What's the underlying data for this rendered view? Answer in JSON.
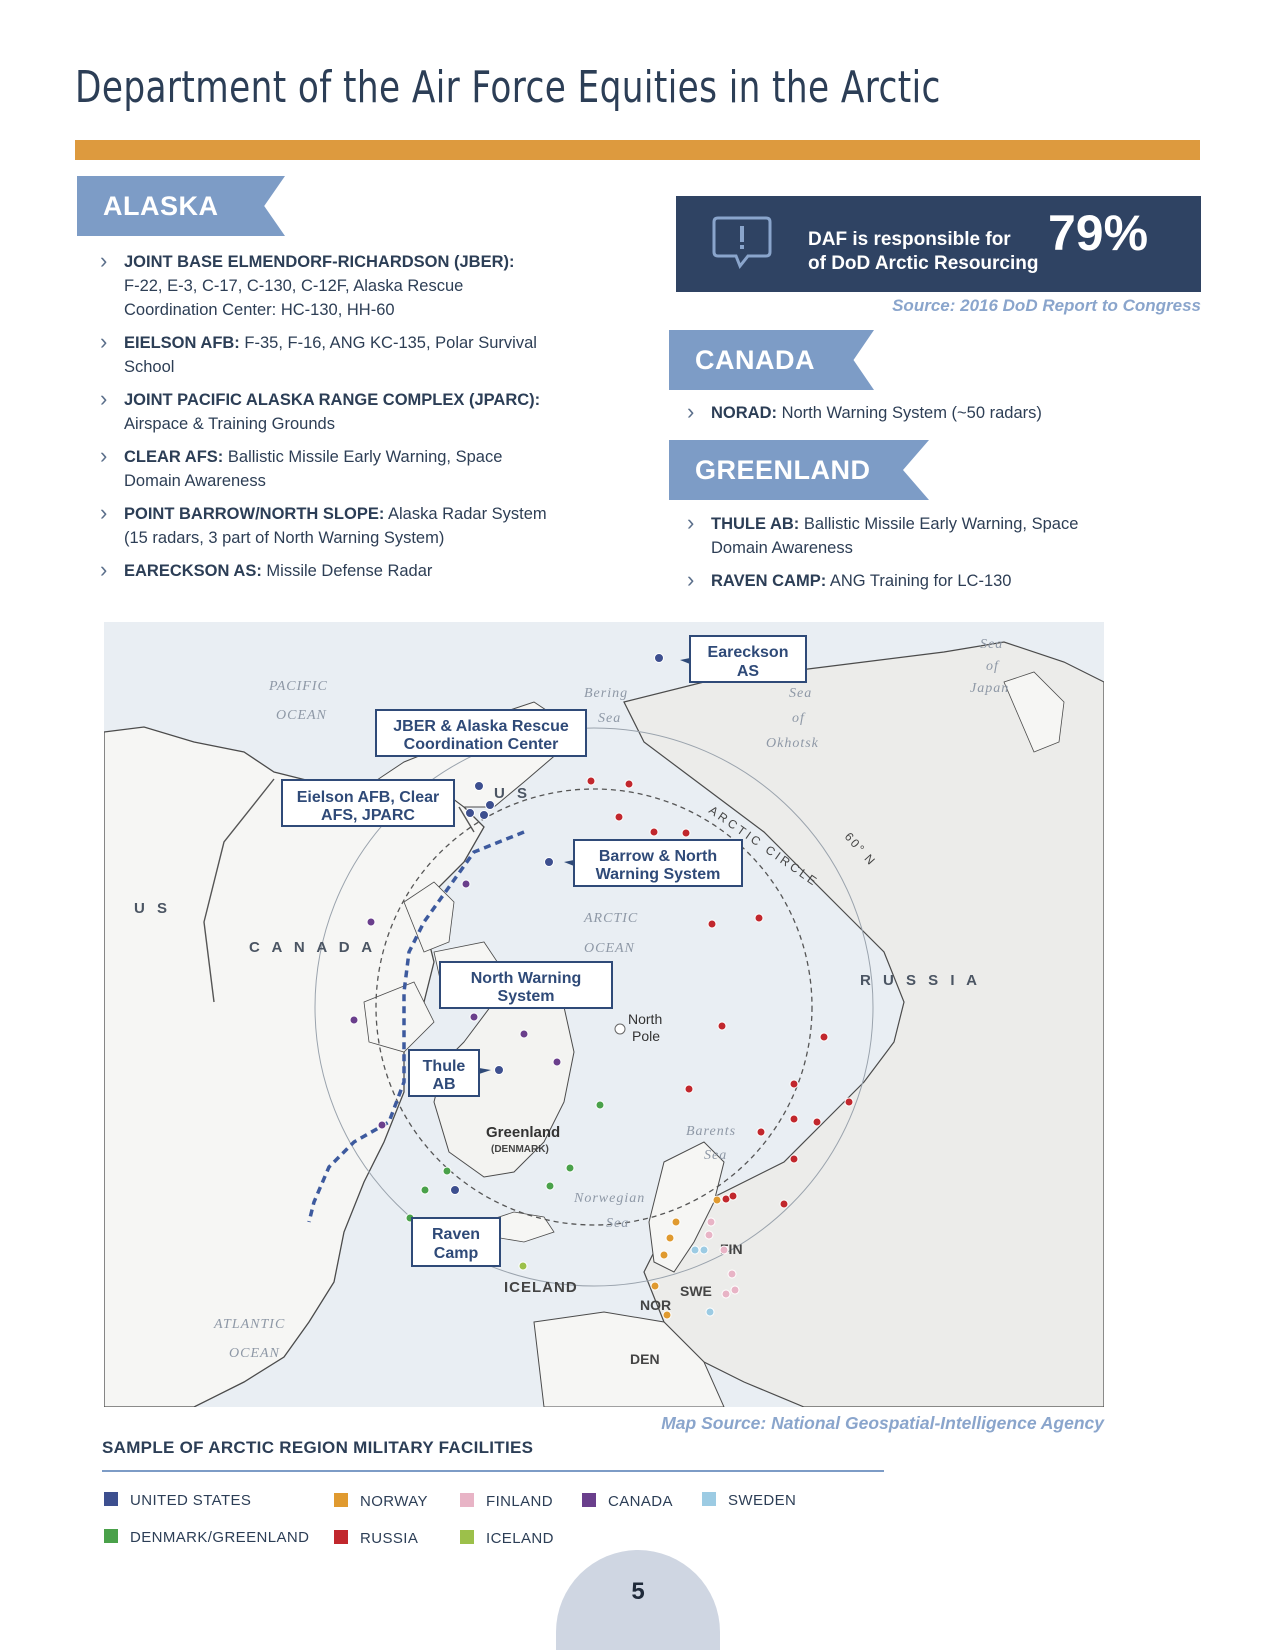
{
  "title": "Department of the Air Force Equities in the Arctic",
  "alaska": {
    "heading": "ALASKA",
    "items": [
      {
        "name": "JOINT BASE ELMENDORF-RICHARDSON (JBER):",
        "desc": "F-22, E-3, C-17, C-130, C-12F, Alaska Rescue Coordination Center: HC-130, HH-60"
      },
      {
        "name": "EIELSON AFB:",
        "desc": "F-35, F-16, ANG KC-135, Polar Survival School"
      },
      {
        "name": "JOINT PACIFIC ALASKA RANGE COMPLEX (JPARC):",
        "desc": "Airspace & Training Grounds"
      },
      {
        "name": "CLEAR AFS:",
        "desc": "Ballistic Missile Early Warning, Space Domain Awareness"
      },
      {
        "name": "POINT BARROW/NORTH SLOPE:",
        "desc": "Alaska Radar System (15 radars, 3 part of North Warning System)"
      },
      {
        "name": "EARECKSON AS:",
        "desc": "Missile Defense Radar"
      }
    ]
  },
  "callout": {
    "line1": "DAF is responsible for",
    "line2": "of DoD Arctic Resourcing",
    "percent": "79%",
    "source": "Source: 2016 DoD Report to Congress"
  },
  "canada": {
    "heading": "CANADA",
    "items": [
      {
        "name": "NORAD:",
        "desc": "North Warning System (~50 radars)"
      }
    ]
  },
  "greenland": {
    "heading": "GREENLAND",
    "items": [
      {
        "name": "THULE AB:",
        "desc": "Ballistic Missile Early Warning, Space Domain Awareness"
      },
      {
        "name": "RAVEN CAMP:",
        "desc": "ANG Training for LC-130"
      }
    ]
  },
  "map": {
    "source": "Map Source: National Geospatial-Intelligence Agency",
    "oceans": {
      "pacific1": "PACIFIC",
      "pacific2": "OCEAN",
      "bering1": "Bering",
      "bering2": "Sea",
      "okhotsk1": "Sea",
      "okhotsk2": "of",
      "okhotsk3": "Okhotsk",
      "japan1": "Sea",
      "japan2": "of",
      "japan3": "Japan",
      "arctic1": "ARCTIC",
      "arctic2": "OCEAN",
      "barents1": "Barents",
      "barents2": "Sea",
      "norwegian1": "Norwegian",
      "norwegian2": "Sea",
      "atlantic1": "ATLANTIC",
      "atlantic2": "OCEAN"
    },
    "countries": {
      "us1": "U S",
      "us2": "U S",
      "canada": "C A N A D A",
      "russia": "R U S S I A",
      "greenland": "Greenland",
      "denmark": "(DENMARK)",
      "iceland": "ICELAND",
      "nor": "NOR",
      "swe": "SWE",
      "fin": "FIN",
      "den": "DEN"
    },
    "north_pole1": "North",
    "north_pole2": "Pole",
    "arctic_circle": "ARCTIC CIRCLE",
    "lat60": "60° N",
    "callouts": {
      "eareckson1": "Eareckson",
      "eareckson2": "AS",
      "jber1": "JBER & Alaska Rescue",
      "jber2": "Coordination Center",
      "eielson1": "Eielson AFB, Clear",
      "eielson2": "AFS, JPARC",
      "barrow1": "Barrow & North",
      "barrow2": "Warning System",
      "nws1": "North Warning",
      "nws2": "System",
      "thule1": "Thule",
      "thule2": "AB",
      "raven1": "Raven",
      "raven2": "Camp"
    }
  },
  "legend": {
    "title": "SAMPLE OF ARCTIC REGION MILITARY FACILITIES",
    "items": [
      {
        "label": "UNITED STATES",
        "color": "#3d4f8f"
      },
      {
        "label": "NORWAY",
        "color": "#e09a2f"
      },
      {
        "label": "FINLAND",
        "color": "#e8b4c6"
      },
      {
        "label": "CANADA",
        "color": "#6a3f8c"
      },
      {
        "label": "SWEDEN",
        "color": "#9ccbe3"
      },
      {
        "label": "DENMARK/GREENLAND",
        "color": "#4aa14a"
      },
      {
        "label": "RUSSIA",
        "color": "#c1272d"
      },
      {
        "label": "ICELAND",
        "color": "#9cc04a"
      }
    ]
  },
  "page_number": "5"
}
